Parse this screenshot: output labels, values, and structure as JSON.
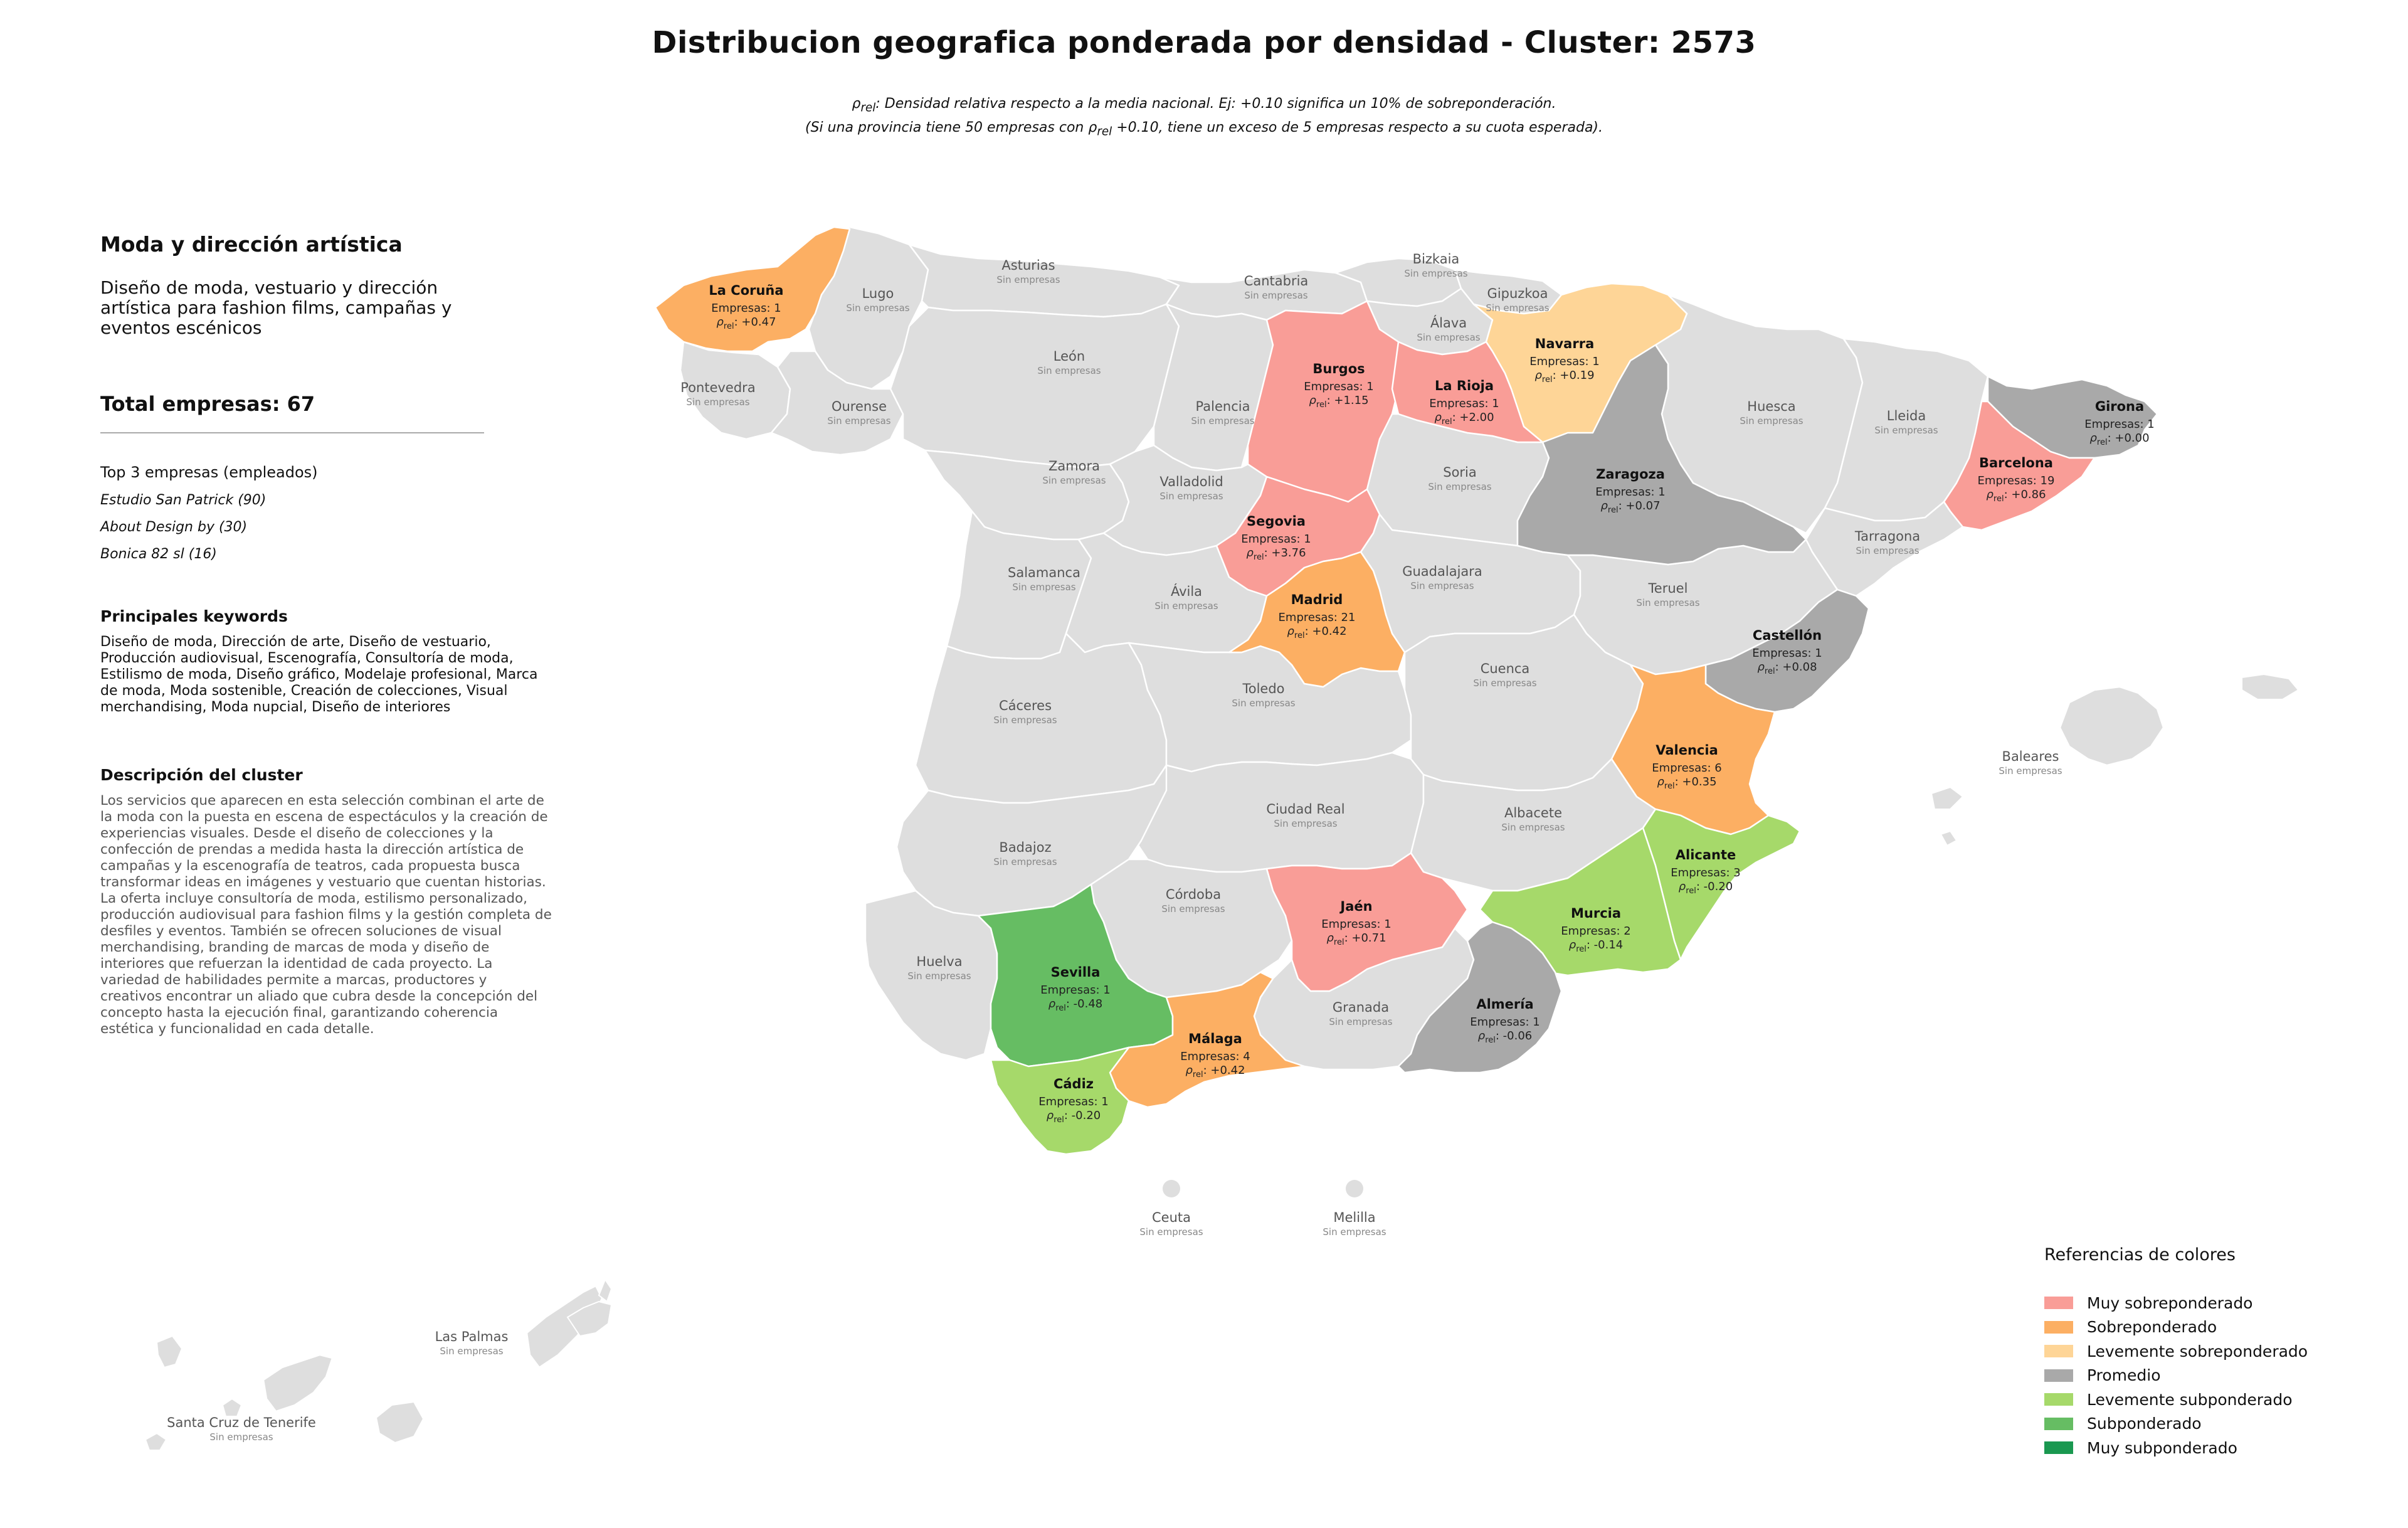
{
  "title": "Distribucion geografica ponderada por densidad - Cluster: 2573",
  "subtitle": {
    "line1_symbol": "ρ",
    "line1_sub": "rel",
    "line1_rest": ": Densidad relativa respecto a la media nacional. Ej: +0.10 significa un 10% de sobreponderación.",
    "line2_start": "(Si una provincia tiene 50 empresas con ",
    "line2_symbol": "ρ",
    "line2_sub": "rel",
    "line2_rest": " +0.10, tiene un exceso de 5 empresas respecto a su cuota esperada)."
  },
  "info": {
    "cluster_name": "Moda y dirección artística",
    "cluster_short": "Diseño de moda, vestuario y dirección artística para fashion films, campañas y eventos escénicos",
    "total_label": "Total empresas: 67",
    "top3_title": "Top 3 empresas (empleados)",
    "top3": [
      "Estudio San Patrick (90)",
      "About Design by (30)",
      "Bonica 82 sl (16)"
    ],
    "keywords_title": "Principales keywords",
    "keywords_text": "Diseño de moda, Dirección de arte, Diseño de vestuario, Producción audiovisual, Escenografía, Consultoría de moda, Estilismo de moda, Diseño gráfico, Modelaje profesional, Marca de moda, Moda sostenible, Creación de colecciones, Visual merchandising, Moda nupcial, Diseño de interiores",
    "description_title": "Descripción del cluster",
    "description_text": "Los servicios que aparecen en esta selección combinan el arte de la moda con la puesta en escena de espectáculos y la creación de experiencias visuales. Desde el diseño de colecciones y la confección de prendas a medida hasta la dirección artística de campañas y la escenografía de teatros, cada propuesta busca transformar ideas en imágenes y vestuario que cuentan historias. La oferta incluye consultoría de moda, estilismo personalizado, producción audiovisual para fashion films y la gestión completa de desfiles y eventos. También se ofrecen soluciones de visual merchandising, branding de marcas de moda y diseño de interiores que refuerzan la identidad de cada proyecto. La variedad de habilidades permite a marcas, productores y creativos encontrar un aliado que cubra desde la concepción del concepto hasta la ejecución final, garantizando coherencia estética y funcionalidad en cada detalle."
  },
  "labels": {
    "companies_prefix": "Empresas: ",
    "rho": "ρ",
    "rho_sub": "rel",
    "rho_sep": ": ",
    "no_companies": "Sin empresas"
  },
  "colors": {
    "muy_sobre": "#f99d97",
    "sobre": "#fcaf63",
    "lev_sobre": "#fed597",
    "promedio": "#a9a9a9",
    "lev_sub": "#a6d96a",
    "sub": "#66bd63",
    "muy_sub": "#1a9850",
    "sin": "#dedede",
    "border": "#ffffff"
  },
  "legend": {
    "title": "Referencias de colores",
    "items": [
      {
        "label": "Muy sobreponderado",
        "color": "#f99d97"
      },
      {
        "label": "Sobreponderado",
        "color": "#fcaf63"
      },
      {
        "label": "Levemente sobreponderado",
        "color": "#fed597"
      },
      {
        "label": "Promedio",
        "color": "#a9a9a9"
      },
      {
        "label": "Levemente subponderado",
        "color": "#a6d96a"
      },
      {
        "label": "Subponderado",
        "color": "#66bd63"
      },
      {
        "label": "Muy subponderado",
        "color": "#1a9850"
      }
    ]
  },
  "provinces_with_data": [
    {
      "name": "La Coruña",
      "empresas": 1,
      "rho": "+0.47",
      "cat": "sobre"
    },
    {
      "name": "Burgos",
      "empresas": 1,
      "rho": "+1.15",
      "cat": "muy_sobre"
    },
    {
      "name": "La Rioja",
      "empresas": 1,
      "rho": "+2.00",
      "cat": "muy_sobre"
    },
    {
      "name": "Navarra",
      "empresas": 1,
      "rho": "+0.19",
      "cat": "lev_sobre"
    },
    {
      "name": "Zaragoza",
      "empresas": 1,
      "rho": "+0.07",
      "cat": "promedio"
    },
    {
      "name": "Girona",
      "empresas": 1,
      "rho": "+0.00",
      "cat": "promedio"
    },
    {
      "name": "Barcelona",
      "empresas": 19,
      "rho": "+0.86",
      "cat": "muy_sobre"
    },
    {
      "name": "Segovia",
      "empresas": 1,
      "rho": "+3.76",
      "cat": "muy_sobre"
    },
    {
      "name": "Madrid",
      "empresas": 21,
      "rho": "+0.42",
      "cat": "sobre"
    },
    {
      "name": "Castellón",
      "empresas": 1,
      "rho": "+0.08",
      "cat": "promedio"
    },
    {
      "name": "Valencia",
      "empresas": 6,
      "rho": "+0.35",
      "cat": "sobre"
    },
    {
      "name": "Alicante",
      "empresas": 3,
      "rho": "-0.20",
      "cat": "lev_sub"
    },
    {
      "name": "Murcia",
      "empresas": 2,
      "rho": "-0.14",
      "cat": "lev_sub"
    },
    {
      "name": "Jaén",
      "empresas": 1,
      "rho": "+0.71",
      "cat": "muy_sobre"
    },
    {
      "name": "Almería",
      "empresas": 1,
      "rho": "-0.06",
      "cat": "promedio"
    },
    {
      "name": "Sevilla",
      "empresas": 1,
      "rho": "-0.48",
      "cat": "sub"
    },
    {
      "name": "Málaga",
      "empresas": 4,
      "rho": "+0.42",
      "cat": "sobre"
    },
    {
      "name": "Cádiz",
      "empresas": 1,
      "rho": "-0.20",
      "cat": "lev_sub"
    }
  ],
  "provinces_without_data": [
    "Lugo",
    "Asturias",
    "Cantabria",
    "Bizkaia",
    "Gipuzkoa",
    "Álava",
    "Pontevedra",
    "Ourense",
    "León",
    "Palencia",
    "Huesca",
    "Lleida",
    "Soria",
    "Zamora",
    "Valladolid",
    "Tarragona",
    "Salamanca",
    "Ávila",
    "Guadalajara",
    "Teruel",
    "Cáceres",
    "Toledo",
    "Cuenca",
    "Baleares",
    "Ciudad Real",
    "Albacete",
    "Badajoz",
    "Córdoba",
    "Huelva",
    "Granada",
    "Ceuta",
    "Melilla",
    "Las Palmas",
    "Santa Cruz de Tenerife"
  ]
}
